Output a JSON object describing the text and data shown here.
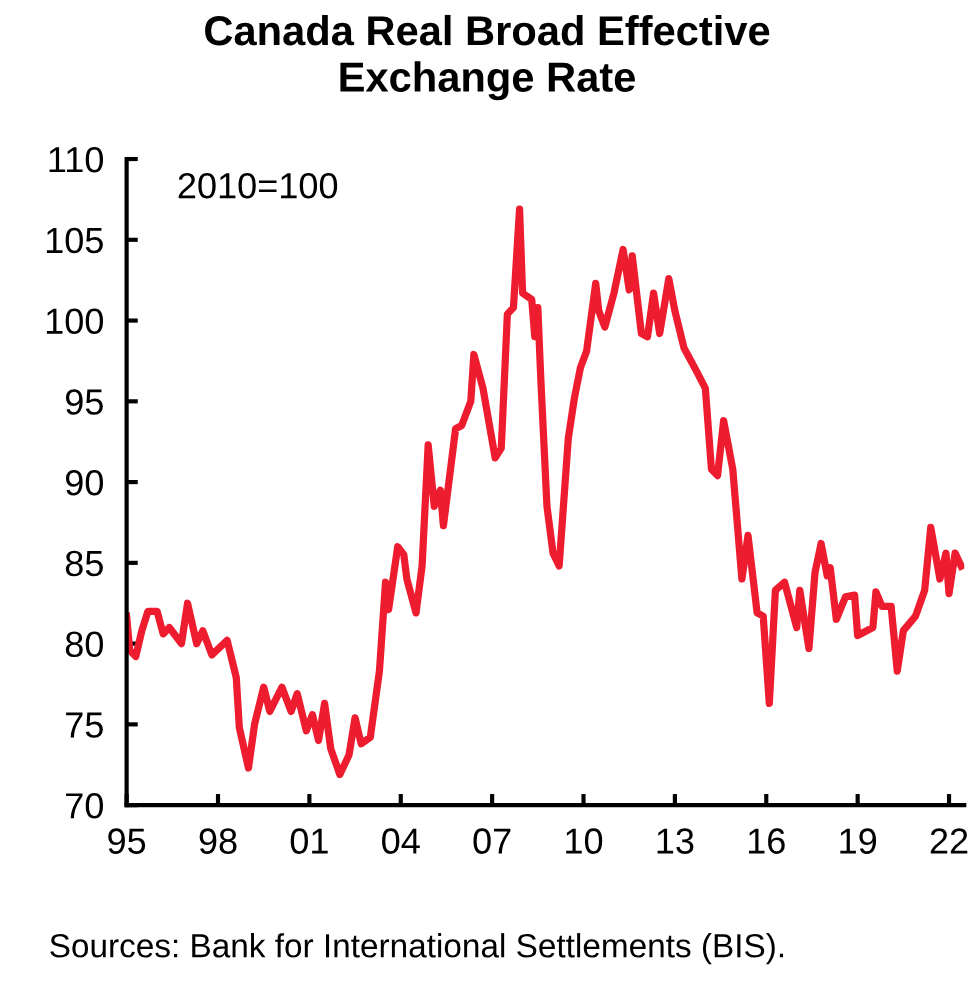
{
  "chart_data": {
    "type": "line",
    "title": "Canada Real Broad Effective\nExchange Rate",
    "annotations": [
      "2010=100",
      "Sources: Bank for International Settlements (BIS)."
    ],
    "xlim": [
      1995,
      2022.5
    ],
    "ylim": [
      70,
      110
    ],
    "xticks": [
      {
        "value": 1995,
        "label": "95"
      },
      {
        "value": 1998,
        "label": "98"
      },
      {
        "value": 2001,
        "label": "01"
      },
      {
        "value": 2004,
        "label": "04"
      },
      {
        "value": 2007,
        "label": "07"
      },
      {
        "value": 2010,
        "label": "10"
      },
      {
        "value": 2013,
        "label": "13"
      },
      {
        "value": 2016,
        "label": "16"
      },
      {
        "value": 2019,
        "label": "19"
      },
      {
        "value": 2022,
        "label": "22"
      }
    ],
    "yticks": [
      70,
      75,
      80,
      85,
      90,
      95,
      100,
      105,
      110
    ],
    "grid": false,
    "marker": "none",
    "line_style": "solid",
    "series": [
      {
        "color": "#ed1c2e",
        "x": [
          1995.0,
          1995.1,
          1995.3,
          1995.5,
          1995.7,
          1996.0,
          1996.2,
          1996.4,
          1996.6,
          1996.8,
          1997.0,
          1997.3,
          1997.5,
          1997.8,
          1998.3,
          1998.6,
          1998.7,
          1999.0,
          1999.2,
          1999.5,
          1999.7,
          2000.1,
          2000.4,
          2000.6,
          2000.9,
          2001.1,
          2001.3,
          2001.5,
          2001.7,
          2002.0,
          2002.3,
          2002.5,
          2002.7,
          2003.0,
          2003.3,
          2003.5,
          2003.6,
          2003.9,
          2004.1,
          2004.2,
          2004.5,
          2004.7,
          2004.9,
          2005.1,
          2005.3,
          2005.4,
          2005.8,
          2006.0,
          2006.3,
          2006.4,
          2006.7,
          2007.1,
          2007.3,
          2007.5,
          2007.7,
          2007.9,
          2008.0,
          2008.3,
          2008.4,
          2008.5,
          2008.6,
          2008.8,
          2009.0,
          2009.2,
          2009.5,
          2009.7,
          2009.9,
          2010.1,
          2010.4,
          2010.5,
          2010.7,
          2011.0,
          2011.3,
          2011.5,
          2011.6,
          2011.9,
          2012.1,
          2012.3,
          2012.5,
          2012.8,
          2013.0,
          2013.3,
          2013.7,
          2014.0,
          2014.2,
          2014.4,
          2014.6,
          2014.9,
          2015.2,
          2015.4,
          2015.7,
          2015.9,
          2016.1,
          2016.3,
          2016.6,
          2017.0,
          2017.1,
          2017.4,
          2017.6,
          2017.8,
          2018.0,
          2018.1,
          2018.3,
          2018.6,
          2018.9,
          2019.0,
          2019.5,
          2019.6,
          2019.8,
          2020.1,
          2020.3,
          2020.5,
          2020.9,
          2021.2,
          2021.4,
          2021.7,
          2021.9,
          2022.0,
          2022.2,
          2022.4
        ],
        "values": [
          81.7,
          79.6,
          79.2,
          80.8,
          82.0,
          82.0,
          80.6,
          81.0,
          80.5,
          80.0,
          82.5,
          80.0,
          80.8,
          79.3,
          80.2,
          77.9,
          74.8,
          72.3,
          75.0,
          77.3,
          75.8,
          77.3,
          75.8,
          76.9,
          74.6,
          75.6,
          74.0,
          76.3,
          73.5,
          71.9,
          73.1,
          75.4,
          73.8,
          74.2,
          78.3,
          83.8,
          82.1,
          86.0,
          85.5,
          84.0,
          81.9,
          84.8,
          92.3,
          88.5,
          89.5,
          87.3,
          93.3,
          93.5,
          95.0,
          97.9,
          95.8,
          91.5,
          92.1,
          100.4,
          100.8,
          106.9,
          101.7,
          101.3,
          99.0,
          100.8,
          96.3,
          88.5,
          85.6,
          84.8,
          92.7,
          95.2,
          97.1,
          98.1,
          102.3,
          100.6,
          99.6,
          101.7,
          104.4,
          101.9,
          104.0,
          99.2,
          99.0,
          101.7,
          99.2,
          102.6,
          100.6,
          98.3,
          96.9,
          95.8,
          90.8,
          90.4,
          93.8,
          90.8,
          84.0,
          86.7,
          81.9,
          81.7,
          76.3,
          83.3,
          83.8,
          81.0,
          83.3,
          79.7,
          84.4,
          86.2,
          84.2,
          84.7,
          81.5,
          82.9,
          83.0,
          80.5,
          81.0,
          83.2,
          82.3,
          82.3,
          78.3,
          80.8,
          81.7,
          83.3,
          87.2,
          84.0,
          85.6,
          83.1,
          85.6,
          84.8
        ]
      }
    ]
  }
}
